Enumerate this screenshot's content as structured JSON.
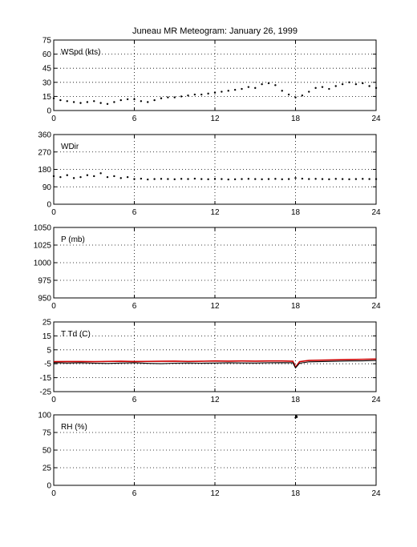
{
  "title": "Juneau MR Meteogram:   January 26, 1999",
  "chart_data": [
    {
      "type": "scatter",
      "panel_label": "WSpd (kts)",
      "xlim": [
        0,
        24
      ],
      "ylim": [
        0,
        75
      ],
      "xticks": [
        0,
        6,
        12,
        18,
        24
      ],
      "yticks": [
        0,
        15,
        30,
        45,
        60,
        75
      ],
      "grid": true,
      "series": [
        {
          "color": "#000000",
          "x": [
            0,
            0.5,
            1,
            1.5,
            2,
            2.5,
            3,
            3.5,
            4,
            4.5,
            5,
            5.5,
            6,
            6.5,
            7,
            7.5,
            8,
            8.5,
            9,
            9.5,
            10,
            10.5,
            11,
            11.5,
            12,
            12.5,
            13,
            13.5,
            14,
            14.5,
            15,
            15.5,
            16,
            16.5,
            17,
            17.5,
            18,
            18.5,
            19,
            19.5,
            20,
            20.5,
            21,
            21.5,
            22,
            22.5,
            23,
            23.5,
            24
          ],
          "y": [
            13,
            11,
            10,
            9,
            8,
            9,
            10,
            8,
            7,
            9,
            11,
            12,
            12,
            10,
            9,
            11,
            13,
            14,
            14,
            15,
            16,
            17,
            17,
            18,
            19,
            20,
            21,
            22,
            23,
            25,
            24,
            28,
            29,
            27,
            21,
            17,
            14,
            16,
            20,
            24,
            25,
            23,
            26,
            28,
            30,
            28,
            29,
            26,
            24
          ]
        }
      ]
    },
    {
      "type": "scatter",
      "panel_label": "WDir",
      "xlim": [
        0,
        24
      ],
      "ylim": [
        0,
        360
      ],
      "xticks": [
        0,
        6,
        12,
        18,
        24
      ],
      "yticks": [
        0,
        90,
        180,
        270,
        360
      ],
      "grid": true,
      "series": [
        {
          "color": "#000000",
          "x": [
            0,
            0.5,
            1,
            1.5,
            2,
            2.5,
            3,
            3.5,
            4,
            4.5,
            5,
            5.5,
            6,
            6.5,
            7,
            7.5,
            8,
            8.5,
            9,
            9.5,
            10,
            10.5,
            11,
            11.5,
            12,
            12.5,
            13,
            13.5,
            14,
            14.5,
            15,
            15.5,
            16,
            16.5,
            17,
            17.5,
            18,
            18.5,
            19,
            19.5,
            20,
            20.5,
            21,
            21.5,
            22,
            22.5,
            23,
            23.5,
            24
          ],
          "y": [
            145,
            140,
            150,
            135,
            140,
            150,
            145,
            160,
            140,
            145,
            135,
            140,
            130,
            132,
            128,
            130,
            131,
            130,
            129,
            131,
            130,
            132,
            130,
            129,
            131,
            130,
            128,
            129,
            130,
            131,
            130,
            129,
            130,
            131,
            129,
            130,
            135,
            132,
            130,
            131,
            130,
            129,
            131,
            130,
            129,
            130,
            131,
            130,
            130
          ]
        }
      ]
    },
    {
      "type": "scatter",
      "panel_label": "P (mb)",
      "xlim": [
        0,
        24
      ],
      "ylim": [
        950,
        1050
      ],
      "xticks": [
        0,
        6,
        12,
        18,
        24
      ],
      "yticks": [
        950,
        975,
        1000,
        1025,
        1050
      ],
      "grid": true,
      "series": []
    },
    {
      "type": "line",
      "panel_label": "T Td (C)",
      "xlim": [
        0,
        24
      ],
      "ylim": [
        -25,
        25
      ],
      "xticks": [
        0,
        6,
        12,
        18,
        24
      ],
      "yticks": [
        -25,
        -15,
        -5,
        5,
        15,
        25
      ],
      "grid": true,
      "series": [
        {
          "color": "#cc0000",
          "x": [
            0,
            1,
            2,
            3,
            4,
            5,
            6,
            7,
            8,
            9,
            10,
            11,
            12,
            13,
            14,
            15,
            16,
            17,
            17.8,
            18,
            18.3,
            19,
            20,
            21,
            22,
            23,
            24
          ],
          "y": [
            -3.5,
            -3.4,
            -3.4,
            -3.5,
            -3.3,
            -3.2,
            -3.4,
            -3.3,
            -3.2,
            -3.1,
            -3.3,
            -3.2,
            -3.0,
            -3.1,
            -3.0,
            -3.1,
            -3.0,
            -3.0,
            -3.2,
            -7.5,
            -3.5,
            -2.6,
            -2.4,
            -2.2,
            -2.0,
            -1.8,
            -1.6
          ]
        },
        {
          "color": "#000000",
          "x": [
            0,
            1,
            2,
            3,
            4,
            5,
            6,
            7,
            8,
            9,
            10,
            11,
            12,
            13,
            14,
            15,
            16,
            17,
            17.8,
            18,
            18.3,
            19,
            20,
            21,
            22,
            23,
            24
          ],
          "y": [
            -4.2,
            -4.5,
            -4.3,
            -4.6,
            -4.8,
            -4.5,
            -4.3,
            -4.7,
            -4.9,
            -4.6,
            -4.4,
            -4.6,
            -4.5,
            -4.3,
            -4.4,
            -4.5,
            -4.3,
            -4.2,
            -4.3,
            -8.0,
            -4.6,
            -3.6,
            -3.4,
            -3.2,
            -3.0,
            -2.9,
            -2.6
          ]
        }
      ]
    },
    {
      "type": "scatter",
      "panel_label": "RH (%)",
      "xlim": [
        0,
        24
      ],
      "ylim": [
        0,
        100
      ],
      "xticks": [
        0,
        6,
        12,
        18,
        24
      ],
      "yticks": [
        0,
        25,
        50,
        75,
        100
      ],
      "grid": true,
      "series": [
        {
          "color": "#000000",
          "x": [
            18.0,
            18.05,
            18.1
          ],
          "y": [
            96,
            99,
            97
          ]
        }
      ]
    }
  ]
}
